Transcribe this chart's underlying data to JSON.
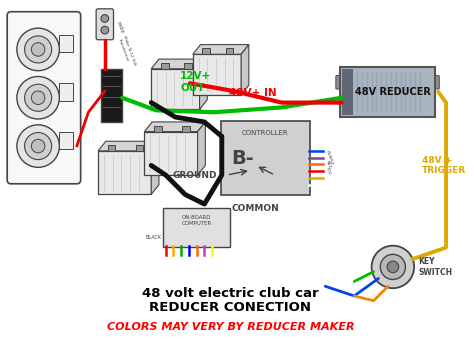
{
  "title_line1": "48 volt electric club car",
  "title_line2": "REDUCER CONECTION",
  "subtitle": "COLORS MAY VERY BY REDUCER MAKER",
  "label_12v": "12V+\nOUT",
  "label_48v_in": "48V+ IN",
  "label_48v_reducer": "48V REDUCER",
  "label_48v_trigger": "48V +\nTRIGGER",
  "label_ground": "GROUND",
  "label_common": "COMMON",
  "label_controller": "CONTROLLER",
  "label_b_minus": "B-",
  "label_on_board": "ON-BOARD\nCOMPUTER",
  "label_key_switch": "KEY\nSWITCH",
  "bg_color": "#ffffff",
  "title_color": "#000000",
  "subtitle_color": "#ff0000",
  "color_green": "#00bb00",
  "color_red": "#ee0000",
  "color_black": "#111111",
  "color_yellow": "#ddaa00",
  "color_blue": "#0044ee",
  "color_purple": "#884488",
  "color_orange": "#ee6600",
  "color_gray": "#aaaaaa",
  "color_dark": "#222222",
  "color_sketch": "#444444"
}
